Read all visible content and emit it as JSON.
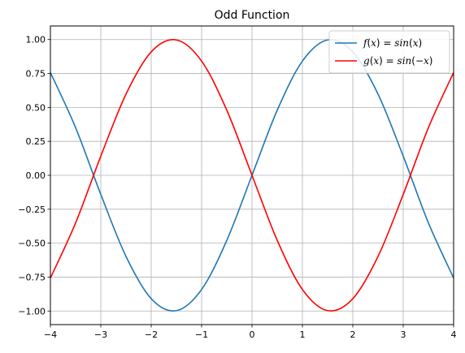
{
  "chart_data": {
    "type": "line",
    "title": "Odd Function",
    "xlabel": "",
    "ylabel": "",
    "xlim": [
      -4,
      4
    ],
    "ylim": [
      -1.1,
      1.1
    ],
    "grid": true,
    "legend_position": "top-right",
    "x_ticks": [
      -4,
      -3,
      -2,
      -1,
      0,
      1,
      2,
      3,
      4
    ],
    "x_tick_labels": [
      "−4",
      "−3",
      "−2",
      "−1",
      "0",
      "1",
      "2",
      "3",
      "4"
    ],
    "y_ticks": [
      -1.0,
      -0.75,
      -0.5,
      -0.25,
      0.0,
      0.25,
      0.5,
      0.75,
      1.0
    ],
    "y_tick_labels": [
      "−1.00",
      "−0.75",
      "−0.50",
      "−0.25",
      "0.00",
      "0.25",
      "0.50",
      "0.75",
      "1.00"
    ],
    "series": [
      {
        "name_parts": [
          [
            "f",
            true
          ],
          [
            "(",
            false
          ],
          [
            "x",
            true
          ],
          [
            ") = ",
            false
          ],
          [
            "sin",
            true
          ],
          [
            "(",
            false
          ],
          [
            "x",
            true
          ],
          [
            ")",
            false
          ]
        ],
        "color": "#1f77b4",
        "x": [
          -4.0,
          -3.5,
          -3.0,
          -2.5,
          -2.0,
          -1.5,
          -1.0,
          -0.5,
          0.0,
          0.5,
          1.0,
          1.5,
          2.0,
          2.5,
          3.0,
          3.5,
          4.0
        ],
        "y": [
          0.757,
          0.351,
          -0.141,
          -0.598,
          -0.909,
          -0.997,
          -0.841,
          -0.479,
          0.0,
          0.479,
          0.841,
          0.997,
          0.909,
          0.598,
          0.141,
          -0.351,
          -0.757
        ]
      },
      {
        "name_parts": [
          [
            "g",
            true
          ],
          [
            "(",
            false
          ],
          [
            "x",
            true
          ],
          [
            ") = ",
            false
          ],
          [
            "sin",
            true
          ],
          [
            "(−",
            false
          ],
          [
            "x",
            true
          ],
          [
            ")",
            false
          ]
        ],
        "color": "#ff0000",
        "x": [
          -4.0,
          -3.5,
          -3.0,
          -2.5,
          -2.0,
          -1.5,
          -1.0,
          -0.5,
          0.0,
          0.5,
          1.0,
          1.5,
          2.0,
          2.5,
          3.0,
          3.5,
          4.0
        ],
        "y": [
          -0.757,
          -0.351,
          0.141,
          0.598,
          0.909,
          0.997,
          0.841,
          0.479,
          0.0,
          -0.479,
          -0.841,
          -0.997,
          -0.909,
          -0.598,
          -0.141,
          0.351,
          0.757
        ]
      }
    ]
  }
}
